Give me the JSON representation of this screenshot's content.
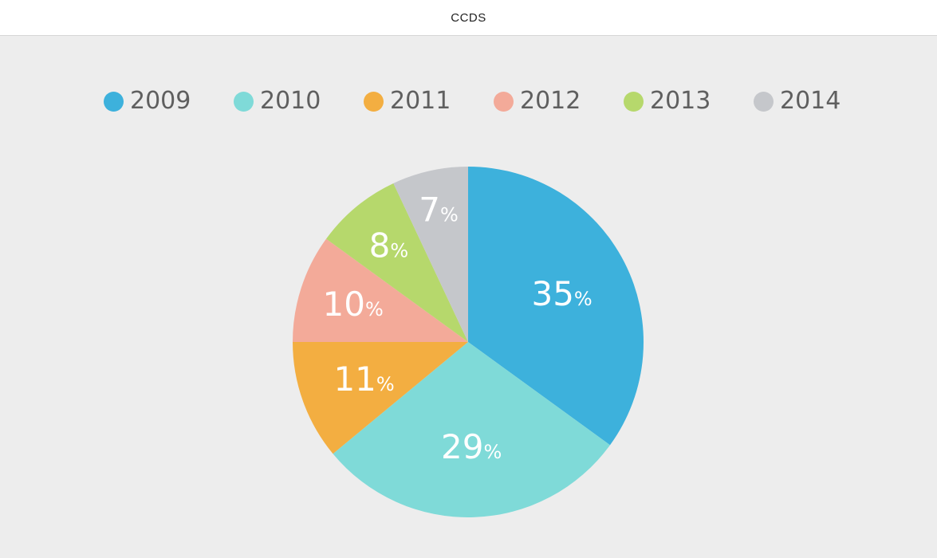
{
  "window": {
    "title": "CCDS"
  },
  "chart_data": {
    "type": "pie",
    "title": "",
    "legend_position": "top",
    "categories": [
      "2009",
      "2010",
      "2011",
      "2012",
      "2013",
      "2014"
    ],
    "values": [
      35,
      29,
      11,
      10,
      8,
      7
    ],
    "value_suffix": "%",
    "colors": [
      "#3db1dc",
      "#7fdad8",
      "#f3ae41",
      "#f3aa99",
      "#b6d86c",
      "#c5c7cb"
    ],
    "start": "12 o'clock",
    "direction": "clockwise"
  }
}
